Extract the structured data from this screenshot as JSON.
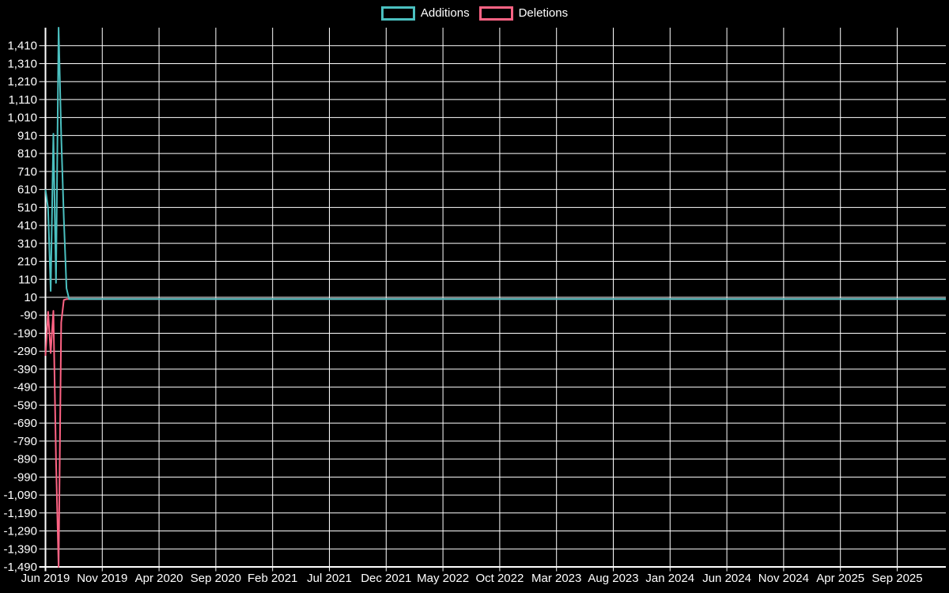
{
  "chart_data": {
    "type": "line",
    "title": "",
    "legend_position": "top",
    "grid": true,
    "background_color": "#000000",
    "grid_color": "#ffffff",
    "text_color": "#ffffff",
    "x_axis_kind": "time-weekly",
    "x_start": "Jun 2019",
    "x_end": "Dec 2025",
    "weeks_total": 344,
    "x_tick_labels": [
      "Jun 2019",
      "Nov 2019",
      "Apr 2020",
      "Sep 2020",
      "Feb 2021",
      "Jul 2021",
      "Dec 2021",
      "May 2022",
      "Oct 2022",
      "Mar 2023",
      "Aug 2023",
      "Jan 2024",
      "Jun 2024",
      "Nov 2024",
      "Apr 2025",
      "Sep 2025"
    ],
    "y_tick_values": [
      1410,
      1310,
      1210,
      1110,
      1010,
      910,
      810,
      710,
      610,
      510,
      410,
      310,
      210,
      110,
      10,
      -90,
      -190,
      -290,
      -390,
      -490,
      -590,
      -690,
      -790,
      -890,
      -990,
      -1090,
      -1190,
      -1290,
      -1390,
      -1490
    ],
    "y_tick_labels": [
      "1,410",
      "1,310",
      "1,210",
      "1,110",
      "1,010",
      "910",
      "810",
      "710",
      "610",
      "510",
      "410",
      "310",
      "210",
      "110",
      "10",
      "-90",
      "-190",
      "-290",
      "-390",
      "-490",
      "-590",
      "-690",
      "-790",
      "-890",
      "-990",
      "-1,090",
      "-1,190",
      "-1,290",
      "-1,390",
      "-1,490"
    ],
    "ylim": [
      -1490,
      1510
    ],
    "series": [
      {
        "name": "Additions",
        "color": "#4bc0c0",
        "leading_weekly_values": [
          610,
          505,
          45,
          920,
          90,
          1510,
          910,
          450,
          60
        ],
        "remaining_value": 0
      },
      {
        "name": "Deletions",
        "color": "#ff6384",
        "leading_weekly_values": [
          -315,
          -70,
          -300,
          -65,
          -890,
          -1490,
          -130,
          -5,
          0
        ],
        "remaining_value": 0
      }
    ]
  }
}
